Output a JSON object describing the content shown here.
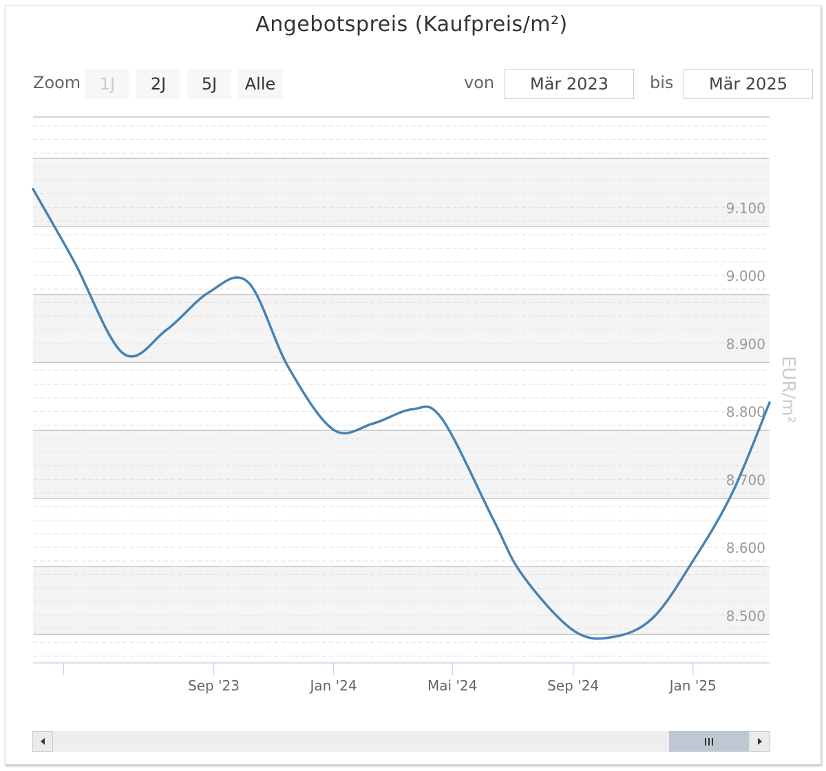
{
  "chart_title": "Angebotspreis (Kaufpreis/m²)",
  "range_selector": {
    "zoom_label": "Zoom",
    "buttons": [
      {
        "label": "1J",
        "enabled": false
      },
      {
        "label": "2J",
        "enabled": true
      },
      {
        "label": "5J",
        "enabled": true
      },
      {
        "label": "Alle",
        "enabled": true
      }
    ],
    "from_label": "von",
    "from_value": "Mär 2023",
    "to_label": "bis",
    "to_value": "Mär 2025"
  },
  "chart_data": {
    "type": "line",
    "title": "Angebotspreis (Kaufpreis/m²)",
    "ylabel": "EUR/m²",
    "ylim": [
      8430,
      9233
    ],
    "yticks": [
      8500,
      8600,
      8700,
      8800,
      8900,
      9000,
      9100
    ],
    "ytick_labels": [
      "8.500",
      "8.600",
      "8.700",
      "8.800",
      "8.900",
      "9.000",
      "9.100"
    ],
    "xlim": [
      "2023-03-01",
      "2025-03-20"
    ],
    "xticks": [
      {
        "date": "2023-04-01",
        "label": ""
      },
      {
        "date": "2023-09-01",
        "label": "Sep '23"
      },
      {
        "date": "2024-01-01",
        "label": "Jan '24"
      },
      {
        "date": "2024-05-01",
        "label": "Mai '24"
      },
      {
        "date": "2024-09-01",
        "label": "Sep '24"
      },
      {
        "date": "2025-01-01",
        "label": "Jan '25"
      }
    ],
    "grid": true,
    "series": [
      {
        "color": "#4682b4",
        "points": [
          {
            "x": "2023-03-01",
            "y": 9127
          },
          {
            "x": "2023-04-12",
            "y": 9020
          },
          {
            "x": "2023-06-01",
            "y": 8885
          },
          {
            "x": "2023-07-15",
            "y": 8920
          },
          {
            "x": "2023-08-27",
            "y": 8975
          },
          {
            "x": "2023-10-06",
            "y": 8990
          },
          {
            "x": "2023-11-16",
            "y": 8865
          },
          {
            "x": "2024-01-01",
            "y": 8773
          },
          {
            "x": "2024-02-10",
            "y": 8782
          },
          {
            "x": "2024-03-21",
            "y": 8803
          },
          {
            "x": "2024-04-20",
            "y": 8790
          },
          {
            "x": "2024-06-11",
            "y": 8643
          },
          {
            "x": "2024-07-11",
            "y": 8560
          },
          {
            "x": "2024-09-01",
            "y": 8478
          },
          {
            "x": "2024-10-11",
            "y": 8468
          },
          {
            "x": "2024-11-21",
            "y": 8496
          },
          {
            "x": "2025-01-01",
            "y": 8580
          },
          {
            "x": "2025-02-10",
            "y": 8680
          },
          {
            "x": "2025-03-20",
            "y": 8813
          }
        ]
      }
    ]
  },
  "navigator": {
    "left_arrow": "arrow-left-icon",
    "right_arrow": "arrow-right-icon",
    "handle": "grip-icon"
  }
}
